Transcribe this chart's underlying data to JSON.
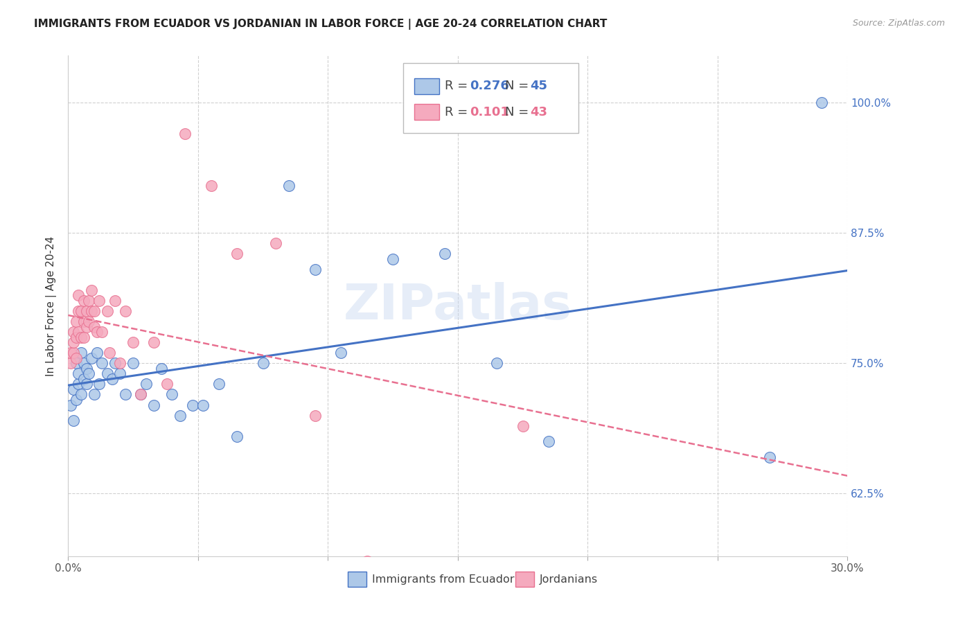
{
  "title": "IMMIGRANTS FROM ECUADOR VS JORDANIAN IN LABOR FORCE | AGE 20-24 CORRELATION CHART",
  "source": "Source: ZipAtlas.com",
  "ylabel": "In Labor Force | Age 20-24",
  "ytick_labels": [
    "62.5%",
    "75.0%",
    "87.5%",
    "100.0%"
  ],
  "ytick_values": [
    0.625,
    0.75,
    0.875,
    1.0
  ],
  "xlim": [
    0.0,
    0.3
  ],
  "ylim": [
    0.565,
    1.045
  ],
  "legend_r1": "0.276",
  "legend_n1": "45",
  "legend_r2": "0.101",
  "legend_n2": "43",
  "color_ecuador": "#adc8e8",
  "color_jordan": "#f5aabe",
  "line_color_ecuador": "#4472c4",
  "line_color_jordan": "#e87090",
  "watermark": "ZIPatlas",
  "ecuador_x": [
    0.001,
    0.002,
    0.002,
    0.003,
    0.003,
    0.004,
    0.004,
    0.005,
    0.005,
    0.006,
    0.006,
    0.007,
    0.007,
    0.008,
    0.009,
    0.01,
    0.011,
    0.012,
    0.013,
    0.015,
    0.017,
    0.018,
    0.02,
    0.022,
    0.025,
    0.028,
    0.03,
    0.033,
    0.036,
    0.04,
    0.043,
    0.048,
    0.052,
    0.058,
    0.065,
    0.075,
    0.085,
    0.095,
    0.105,
    0.125,
    0.145,
    0.165,
    0.185,
    0.27,
    0.29
  ],
  "ecuador_y": [
    0.71,
    0.695,
    0.725,
    0.715,
    0.75,
    0.73,
    0.74,
    0.72,
    0.76,
    0.735,
    0.75,
    0.745,
    0.73,
    0.74,
    0.755,
    0.72,
    0.76,
    0.73,
    0.75,
    0.74,
    0.735,
    0.75,
    0.74,
    0.72,
    0.75,
    0.72,
    0.73,
    0.71,
    0.745,
    0.72,
    0.7,
    0.71,
    0.71,
    0.73,
    0.68,
    0.75,
    0.92,
    0.84,
    0.76,
    0.85,
    0.855,
    0.75,
    0.675,
    0.66,
    1.0
  ],
  "jordan_x": [
    0.001,
    0.001,
    0.002,
    0.002,
    0.002,
    0.003,
    0.003,
    0.003,
    0.004,
    0.004,
    0.004,
    0.005,
    0.005,
    0.006,
    0.006,
    0.006,
    0.007,
    0.007,
    0.008,
    0.008,
    0.009,
    0.009,
    0.01,
    0.01,
    0.011,
    0.012,
    0.013,
    0.015,
    0.016,
    0.018,
    0.02,
    0.022,
    0.025,
    0.028,
    0.033,
    0.038,
    0.045,
    0.055,
    0.065,
    0.08,
    0.095,
    0.115,
    0.175
  ],
  "jordan_y": [
    0.75,
    0.76,
    0.76,
    0.77,
    0.78,
    0.755,
    0.775,
    0.79,
    0.78,
    0.8,
    0.815,
    0.775,
    0.8,
    0.775,
    0.79,
    0.81,
    0.785,
    0.8,
    0.79,
    0.81,
    0.8,
    0.82,
    0.785,
    0.8,
    0.78,
    0.81,
    0.78,
    0.8,
    0.76,
    0.81,
    0.75,
    0.8,
    0.77,
    0.72,
    0.77,
    0.73,
    0.97,
    0.92,
    0.855,
    0.865,
    0.7,
    0.56,
    0.69
  ]
}
